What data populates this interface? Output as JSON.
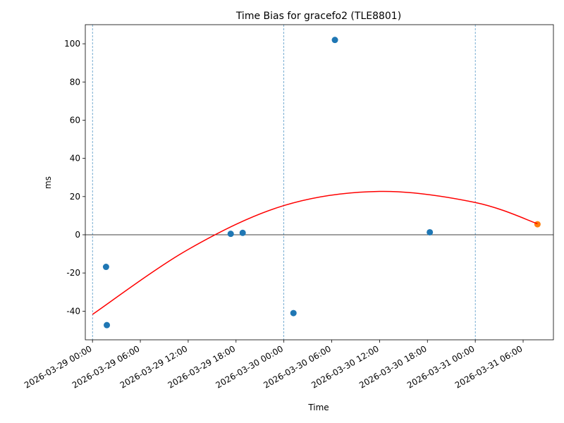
{
  "chart_data": {
    "type": "scatter",
    "title": "Time Bias for gracefo2 (TLE8801)",
    "xlabel": "Time",
    "ylabel": "ms",
    "xlim": [
      "2026-03-28 23:06",
      "2026-03-31 09:48"
    ],
    "ylim": [
      -55,
      110
    ],
    "x_ticks": [
      "2026-03-29 00:00",
      "2026-03-29 06:00",
      "2026-03-29 12:00",
      "2026-03-29 18:00",
      "2026-03-30 00:00",
      "2026-03-30 06:00",
      "2026-03-30 12:00",
      "2026-03-30 18:00",
      "2026-03-31 00:00",
      "2026-03-31 06:00"
    ],
    "y_ticks": [
      -40,
      -20,
      0,
      20,
      40,
      60,
      80,
      100
    ],
    "vertical_lines": [
      "2026-03-29 00:00",
      "2026-03-30 00:00",
      "2026-03-31 00:00"
    ],
    "series": [
      {
        "type": "scatter",
        "color": "#1f77b4",
        "points": [
          {
            "x": "2026-03-29 01:42",
            "y": -16.8
          },
          {
            "x": "2026-03-29 01:48",
            "y": -47.3
          },
          {
            "x": "2026-03-29 17:20",
            "y": 0.5
          },
          {
            "x": "2026-03-29 18:50",
            "y": 1.0
          },
          {
            "x": "2026-03-30 01:12",
            "y": -41.0
          },
          {
            "x": "2026-03-30 06:24",
            "y": 102.0
          },
          {
            "x": "2026-03-30 18:18",
            "y": 1.3
          }
        ]
      },
      {
        "type": "scatter",
        "color": "#ff7f0e",
        "points": [
          {
            "x": "2026-03-31 07:48",
            "y": 5.5
          }
        ]
      },
      {
        "type": "line",
        "color": "#ff0000",
        "points": [
          {
            "x": "2026-03-29 00:00",
            "y": -41.7
          },
          {
            "x": "2026-03-29 12:00",
            "y": -7.7
          },
          {
            "x": "2026-03-30 00:00",
            "y": 15.3
          },
          {
            "x": "2026-03-30 12:00",
            "y": 22.7
          },
          {
            "x": "2026-03-31 00:00",
            "y": 16.9
          },
          {
            "x": "2026-03-31 07:48",
            "y": 5.8
          }
        ]
      }
    ]
  }
}
